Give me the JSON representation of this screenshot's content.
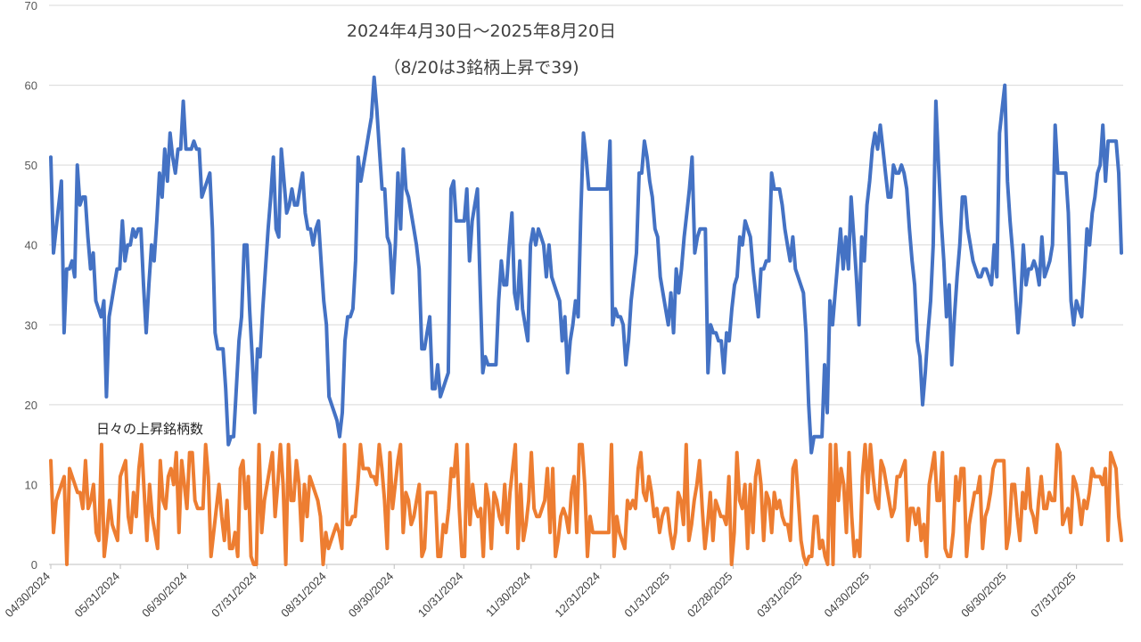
{
  "chart_data": {
    "type": "line",
    "title_lines": [
      "2024年4月30日～2025年8月20日",
      "（8/20は3銘柄上昇で39)"
    ],
    "annotation": "日々の上昇銘柄数",
    "xlabel": "",
    "ylabel": "",
    "ylim": [
      0,
      70
    ],
    "yticks": [
      0,
      10,
      20,
      30,
      40,
      50,
      60,
      70
    ],
    "grid": true,
    "x_start": "2024-04-30",
    "x_end": "2025-08-20",
    "x_tick_labels": [
      "04/30/2024",
      "05/31/2024",
      "06/30/2024",
      "07/31/2024",
      "08/31/2024",
      "09/30/2024",
      "10/31/2024",
      "11/30/2024",
      "12/31/2024",
      "01/31/2025",
      "02/28/2025",
      "03/31/2025",
      "04/30/2025",
      "05/31/2025",
      "06/30/2025",
      "07/31/2025"
    ],
    "series": [
      {
        "color": "#4472C4",
        "values": [
          51,
          39,
          42,
          45,
          48,
          29,
          37,
          37,
          38,
          36,
          50,
          45,
          46,
          46,
          41,
          37,
          39,
          33,
          32,
          31,
          33,
          21,
          31,
          33,
          35,
          37,
          37,
          43,
          38,
          40,
          40,
          42,
          41,
          42,
          42,
          35,
          29,
          35,
          40,
          38,
          43,
          49,
          46,
          52,
          48,
          54,
          51,
          49,
          52,
          52,
          58,
          52,
          52,
          52,
          53,
          52,
          52,
          46,
          47,
          48,
          49,
          42,
          29,
          27,
          27,
          27,
          22,
          15,
          16,
          16,
          22,
          28,
          31,
          40,
          40,
          32,
          26,
          19,
          27,
          26,
          32,
          37,
          42,
          46,
          51,
          42,
          41,
          52,
          48,
          44,
          45,
          47,
          45,
          45,
          47,
          49,
          44,
          42,
          42,
          40,
          42,
          43,
          38,
          33,
          30,
          21,
          20,
          19,
          18,
          16,
          19,
          28,
          31,
          31,
          32,
          38,
          51,
          48,
          50,
          52,
          54,
          56,
          61,
          57,
          52,
          47,
          47,
          41,
          40,
          34,
          40,
          49,
          42,
          52,
          47,
          46,
          44,
          42,
          40,
          37,
          27,
          27,
          29,
          31,
          22,
          22,
          25,
          21,
          22,
          23,
          24,
          47,
          48,
          43,
          43,
          43,
          43,
          47,
          38,
          43,
          45,
          47,
          35,
          24,
          26,
          25,
          25,
          25,
          25,
          33,
          38,
          35,
          35,
          40,
          44,
          34,
          32,
          38,
          32,
          30,
          28,
          40,
          42,
          40,
          42,
          41,
          40,
          36,
          40,
          36,
          35,
          34,
          33,
          28,
          31,
          24,
          28,
          30,
          33,
          31,
          44,
          54,
          51,
          47,
          47,
          47,
          47,
          47,
          47,
          47,
          47,
          53,
          30,
          32,
          31,
          31,
          30,
          25,
          28,
          33,
          36,
          39,
          49,
          49,
          53,
          51,
          48,
          46,
          42,
          41,
          36,
          34,
          32,
          30,
          34,
          29,
          37,
          34,
          37,
          41,
          44,
          47,
          51,
          39,
          41,
          42,
          42,
          42,
          24,
          30,
          29,
          29,
          28,
          28,
          24,
          29,
          28,
          32,
          35,
          36,
          41,
          40,
          43,
          42,
          41,
          37,
          34,
          31,
          37,
          37,
          38,
          38,
          49,
          47,
          47,
          47,
          45,
          42,
          40,
          38,
          41,
          37,
          36,
          35,
          34,
          29,
          20,
          14,
          16,
          16,
          16,
          16,
          25,
          19,
          33,
          30,
          34,
          38,
          42,
          37,
          41,
          37,
          46,
          41,
          36,
          30,
          41,
          38,
          45,
          48,
          52,
          54,
          52,
          55,
          52,
          49,
          46,
          46,
          50,
          49,
          49,
          50,
          49,
          47,
          42,
          38,
          35,
          28,
          26,
          20,
          24,
          29,
          33,
          40,
          58,
          50,
          43,
          38,
          31,
          35,
          25,
          31,
          36,
          40,
          46,
          46,
          42,
          40,
          38,
          37,
          36,
          36,
          37,
          37,
          36,
          35,
          40,
          36,
          54,
          57,
          60,
          48,
          43,
          39,
          34,
          29,
          33,
          40,
          35,
          37,
          37,
          38,
          37,
          35,
          41,
          36,
          37,
          38,
          40,
          55,
          49,
          49,
          49,
          49,
          44,
          33,
          30,
          33,
          32,
          31,
          36,
          42,
          40,
          44,
          46,
          49,
          50,
          55,
          48,
          53,
          53,
          53,
          53,
          49,
          39
        ]
      },
      {
        "color": "#ED7D31",
        "values": [
          13,
          4,
          8,
          9,
          10,
          11,
          0,
          12,
          11,
          10,
          9,
          9,
          7,
          13,
          7,
          8,
          10,
          4,
          3,
          15,
          1,
          4,
          8,
          5,
          4,
          3,
          11,
          12,
          13,
          6,
          4,
          9,
          6,
          12,
          15,
          9,
          3,
          10,
          6,
          4,
          2,
          13,
          8,
          7,
          11,
          12,
          10,
          14,
          4,
          13,
          10,
          7,
          14,
          14,
          8,
          7,
          7,
          7,
          15,
          11,
          1,
          4,
          7,
          10,
          6,
          3,
          8,
          2,
          2,
          4,
          1,
          12,
          13,
          7,
          11,
          1,
          0,
          0,
          15,
          4,
          8,
          10,
          12,
          14,
          6,
          10,
          15,
          10,
          0,
          15,
          8,
          8,
          13,
          10,
          3,
          10,
          6,
          11,
          10,
          9,
          8,
          6,
          0,
          4,
          2,
          3,
          4,
          5,
          4,
          2,
          15,
          5,
          5,
          6,
          6,
          10,
          15,
          12,
          12,
          12,
          11,
          11,
          10,
          15,
          12,
          8,
          2,
          14,
          7,
          10,
          13,
          15,
          4,
          9,
          8,
          5,
          6,
          8,
          10,
          1,
          2,
          9,
          9,
          9,
          9,
          1,
          1,
          5,
          4,
          7,
          12,
          11,
          15,
          7,
          1,
          1,
          15,
          5,
          10,
          7,
          6,
          7,
          1,
          10,
          8,
          2,
          9,
          8,
          6,
          5,
          10,
          4,
          9,
          12,
          15,
          2,
          10,
          3,
          5,
          8,
          14,
          7,
          6,
          6,
          7,
          8,
          12,
          4,
          12,
          1,
          3,
          6,
          7,
          6,
          4,
          9,
          11,
          4,
          15,
          15,
          10,
          1,
          6,
          4,
          4,
          4,
          4,
          4,
          4,
          4,
          15,
          1,
          6,
          4,
          3,
          2,
          8,
          7,
          8,
          7,
          12,
          14,
          9,
          8,
          11,
          9,
          6,
          7,
          4,
          6,
          7,
          7,
          4,
          2,
          4,
          9,
          8,
          5,
          15,
          3,
          5,
          8,
          10,
          13,
          7,
          2,
          5,
          9,
          3,
          8,
          7,
          6,
          6,
          5,
          11,
          0,
          4,
          14,
          8,
          7,
          10,
          2,
          10,
          4,
          11,
          13,
          10,
          3,
          9,
          8,
          4,
          9,
          7,
          8,
          6,
          5,
          5,
          3,
          12,
          13,
          8,
          3,
          1,
          0,
          1,
          1,
          6,
          6,
          2,
          3,
          1,
          0,
          15,
          0,
          15,
          8,
          12,
          10,
          4,
          14,
          6,
          1,
          3,
          1,
          11,
          15,
          9,
          15,
          11,
          8,
          7,
          13,
          12,
          10,
          8,
          6,
          7,
          11,
          11,
          12,
          13,
          3,
          7,
          7,
          5,
          7,
          3,
          5,
          1,
          10,
          12,
          14,
          8,
          8,
          14,
          2,
          1,
          1,
          4,
          11,
          8,
          12,
          12,
          1,
          5,
          7,
          9,
          9,
          11,
          2,
          6,
          7,
          9,
          12,
          13,
          13,
          13,
          13,
          2,
          4,
          10,
          10,
          6,
          3,
          9,
          7,
          12,
          7,
          6,
          4,
          8,
          11,
          7,
          7,
          9,
          8,
          8,
          15,
          14,
          5,
          6,
          7,
          4,
          11,
          10,
          8,
          5,
          8,
          7,
          9,
          12,
          11,
          11,
          11,
          10,
          12,
          3,
          14,
          13,
          12,
          6,
          3
        ]
      }
    ]
  }
}
